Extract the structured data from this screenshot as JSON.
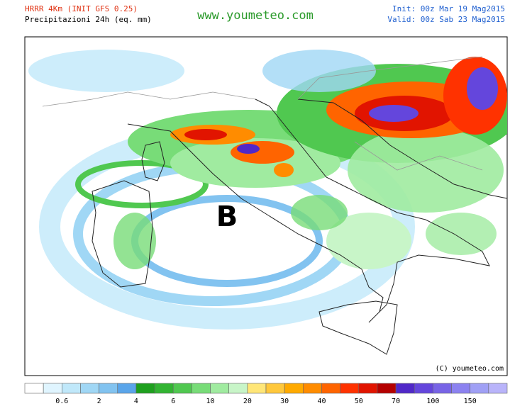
{
  "header": {
    "model": "HRRR 4Km (INIT GFS 0.25)",
    "subtitle": "Precipitazioni 24h (eq. mm)",
    "site": "www.youmeteo.com",
    "init": "Init: 00z Mar 19 Mag2015",
    "valid": "Valid: 00z Sab 23 Mag2015"
  },
  "map": {
    "pressure_label": "B",
    "copyright": "(C) youmeteo.com"
  },
  "legend": {
    "colors": [
      "#ffffff",
      "#e0f5ff",
      "#c0e8fa",
      "#a0d7f5",
      "#82c3f0",
      "#5aa5ea",
      "#1ea01e",
      "#32b432",
      "#50c850",
      "#78dc78",
      "#a0eba0",
      "#c8f5c8",
      "#ffe678",
      "#ffc83c",
      "#ffaa00",
      "#ff8c00",
      "#ff6400",
      "#ff3200",
      "#e11400",
      "#b40000",
      "#5028c8",
      "#6446dc",
      "#7864e6",
      "#8c82f0",
      "#a0a0f5",
      "#b9b4fa"
    ],
    "ticks": [
      0.6,
      2,
      4,
      6,
      10,
      20,
      30,
      40,
      50,
      70,
      100,
      150
    ]
  }
}
